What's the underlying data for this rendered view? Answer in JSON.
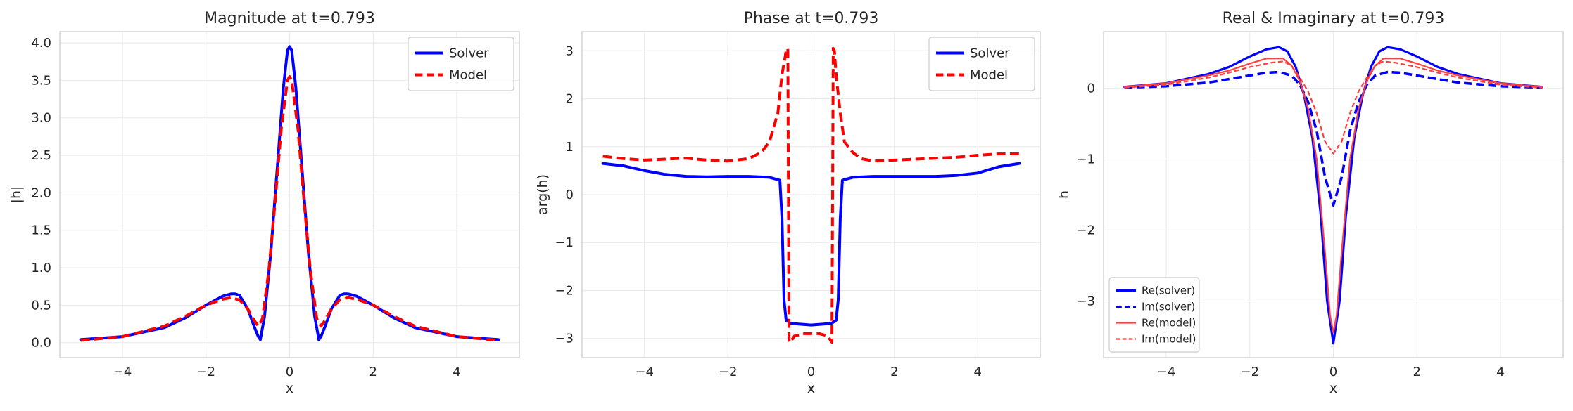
{
  "chart_data": [
    {
      "type": "line",
      "title": "Magnitude at t=0.793",
      "xlabel": "x",
      "ylabel": "|h|",
      "xlim": [
        -5.5,
        5.5
      ],
      "ylim": [
        -0.2,
        4.15
      ],
      "xticks": [
        -4,
        -2,
        0,
        2,
        4
      ],
      "yticks": [
        0.0,
        0.5,
        1.0,
        1.5,
        2.0,
        2.5,
        3.0,
        3.5,
        4.0
      ],
      "ytick_decimals": 1,
      "grid": true,
      "legend": "top-right",
      "series": [
        {
          "name": "Solver",
          "color": "#0000ff",
          "dash": "solid",
          "x": [
            -5,
            -4,
            -3,
            -2.5,
            -2,
            -1.6,
            -1.4,
            -1.3,
            -1.2,
            -1.0,
            -0.85,
            -0.75,
            -0.7,
            -0.6,
            -0.45,
            -0.3,
            -0.15,
            -0.05,
            0,
            0.05,
            0.15,
            0.3,
            0.45,
            0.6,
            0.7,
            0.75,
            0.85,
            1.0,
            1.2,
            1.3,
            1.4,
            1.6,
            2,
            2.5,
            3,
            4,
            5
          ],
          "y": [
            0.04,
            0.08,
            0.2,
            0.33,
            0.5,
            0.62,
            0.65,
            0.65,
            0.63,
            0.45,
            0.22,
            0.08,
            0.04,
            0.35,
            1.2,
            2.3,
            3.4,
            3.9,
            3.95,
            3.9,
            3.4,
            2.3,
            1.2,
            0.35,
            0.04,
            0.08,
            0.22,
            0.45,
            0.63,
            0.65,
            0.65,
            0.62,
            0.5,
            0.33,
            0.2,
            0.08,
            0.04
          ]
        },
        {
          "name": "Model",
          "color": "#ff0000",
          "dash": "dashed",
          "x": [
            -5,
            -4,
            -3,
            -2.5,
            -2,
            -1.6,
            -1.4,
            -1.2,
            -1.0,
            -0.85,
            -0.75,
            -0.65,
            -0.5,
            -0.35,
            -0.2,
            -0.05,
            0,
            0.05,
            0.2,
            0.35,
            0.5,
            0.65,
            0.75,
            0.85,
            1.0,
            1.2,
            1.4,
            1.6,
            2,
            2.5,
            3,
            4,
            5
          ],
          "y": [
            0.03,
            0.08,
            0.22,
            0.35,
            0.5,
            0.58,
            0.6,
            0.57,
            0.45,
            0.3,
            0.22,
            0.32,
            0.95,
            1.85,
            2.85,
            3.5,
            3.55,
            3.5,
            2.85,
            1.85,
            0.95,
            0.32,
            0.22,
            0.3,
            0.45,
            0.57,
            0.6,
            0.58,
            0.5,
            0.35,
            0.22,
            0.08,
            0.03
          ]
        }
      ]
    },
    {
      "type": "line",
      "title": "Phase at t=0.793",
      "xlabel": "x",
      "ylabel": "arg(h)",
      "xlim": [
        -5.5,
        5.5
      ],
      "ylim": [
        -3.4,
        3.4
      ],
      "xticks": [
        -4,
        -2,
        0,
        2,
        4
      ],
      "yticks": [
        -3,
        -2,
        -1,
        0,
        1,
        2,
        3
      ],
      "ytick_decimals": 0,
      "grid": true,
      "legend": "top-right",
      "series": [
        {
          "name": "Solver",
          "color": "#0000ff",
          "dash": "solid",
          "x": [
            -5,
            -4.5,
            -4,
            -3.5,
            -3,
            -2.5,
            -2,
            -1.5,
            -1,
            -0.75,
            -0.7,
            -0.65,
            -0.6,
            -0.5,
            -0.3,
            0,
            0.3,
            0.5,
            0.6,
            0.65,
            0.7,
            0.75,
            1,
            1.5,
            2,
            2.5,
            3,
            3.5,
            4,
            4.5,
            5
          ],
          "y": [
            0.65,
            0.6,
            0.5,
            0.42,
            0.38,
            0.37,
            0.38,
            0.38,
            0.36,
            0.3,
            -0.5,
            -2.2,
            -2.62,
            -2.68,
            -2.7,
            -2.72,
            -2.7,
            -2.68,
            -2.62,
            -2.2,
            -0.5,
            0.3,
            0.36,
            0.38,
            0.38,
            0.38,
            0.38,
            0.4,
            0.45,
            0.58,
            0.65
          ]
        },
        {
          "name": "Model",
          "color": "#ff0000",
          "dash": "dashed",
          "x": [
            -5,
            -4.5,
            -4,
            -3.5,
            -3,
            -2.5,
            -2,
            -1.5,
            -1.2,
            -1,
            -0.8,
            -0.7,
            -0.6,
            -0.56,
            -0.53,
            -0.5,
            -0.4,
            -0.2,
            0,
            0.2,
            0.4,
            0.5,
            0.53,
            0.56,
            0.6,
            0.7,
            0.8,
            1,
            1.2,
            1.5,
            2,
            2.5,
            3,
            3.5,
            4,
            4.5,
            5
          ],
          "y": [
            0.8,
            0.75,
            0.72,
            0.74,
            0.76,
            0.72,
            0.7,
            0.75,
            0.88,
            1.1,
            1.7,
            2.5,
            3.0,
            3.05,
            -3.05,
            -3.08,
            -2.95,
            -2.9,
            -2.9,
            -2.9,
            -2.95,
            -3.08,
            3.05,
            3.0,
            2.5,
            1.7,
            1.1,
            0.88,
            0.75,
            0.7,
            0.72,
            0.74,
            0.76,
            0.78,
            0.82,
            0.85,
            0.85
          ]
        }
      ]
    },
    {
      "type": "line",
      "title": "Real & Imaginary at t=0.793",
      "xlabel": "x",
      "ylabel": "h",
      "xlim": [
        -5.5,
        5.5
      ],
      "ylim": [
        -3.8,
        0.8
      ],
      "xticks": [
        -4,
        -2,
        0,
        2,
        4
      ],
      "yticks": [
        -3,
        -2,
        -1,
        0
      ],
      "ytick_decimals": 0,
      "grid": true,
      "legend": "bottom-left",
      "legend_small": true,
      "series": [
        {
          "name": "Re(solver)",
          "color": "#0000ff",
          "dash": "solid",
          "width": 3.2,
          "x": [
            -5,
            -4,
            -3,
            -2.5,
            -2,
            -1.6,
            -1.3,
            -1.1,
            -0.9,
            -0.7,
            -0.5,
            -0.3,
            -0.15,
            0,
            0.15,
            0.3,
            0.5,
            0.7,
            0.9,
            1.1,
            1.3,
            1.6,
            2,
            2.5,
            3,
            4,
            5
          ],
          "y": [
            0.02,
            0.07,
            0.2,
            0.3,
            0.45,
            0.55,
            0.58,
            0.52,
            0.3,
            -0.1,
            -0.7,
            -1.8,
            -3.0,
            -3.6,
            -3.0,
            -1.8,
            -0.7,
            -0.1,
            0.3,
            0.52,
            0.58,
            0.55,
            0.45,
            0.3,
            0.2,
            0.07,
            0.02
          ]
        },
        {
          "name": "Im(solver)",
          "color": "#0000ff",
          "dash": "dashed",
          "width": 3.6,
          "x": [
            -5,
            -4,
            -3,
            -2.5,
            -2,
            -1.6,
            -1.3,
            -1.0,
            -0.8,
            -0.6,
            -0.4,
            -0.2,
            0,
            0.2,
            0.4,
            0.6,
            0.8,
            1.0,
            1.3,
            1.6,
            2,
            2.5,
            3,
            4,
            5
          ],
          "y": [
            0.01,
            0.03,
            0.08,
            0.13,
            0.18,
            0.22,
            0.23,
            0.18,
            0.05,
            -0.2,
            -0.6,
            -1.25,
            -1.65,
            -1.25,
            -0.6,
            -0.2,
            0.05,
            0.18,
            0.23,
            0.22,
            0.18,
            0.13,
            0.08,
            0.03,
            0.01
          ]
        },
        {
          "name": "Re(model)",
          "color": "#ff4040",
          "dash": "solid",
          "width": 2.2,
          "x": [
            -5,
            -4,
            -3,
            -2.5,
            -2,
            -1.6,
            -1.2,
            -1.0,
            -0.8,
            -0.6,
            -0.4,
            -0.2,
            -0.08,
            0,
            0.08,
            0.2,
            0.4,
            0.6,
            0.8,
            1.0,
            1.2,
            1.6,
            2,
            2.5,
            3,
            4,
            5
          ],
          "y": [
            0.02,
            0.07,
            0.18,
            0.25,
            0.35,
            0.42,
            0.42,
            0.32,
            0.1,
            -0.3,
            -1.0,
            -2.3,
            -3.2,
            -3.45,
            -3.2,
            -2.3,
            -1.0,
            -0.3,
            0.1,
            0.32,
            0.42,
            0.42,
            0.35,
            0.25,
            0.18,
            0.07,
            0.02
          ]
        },
        {
          "name": "Im(model)",
          "color": "#ff4040",
          "dash": "dashed",
          "width": 2.2,
          "x": [
            -5,
            -4,
            -3,
            -2.5,
            -2,
            -1.5,
            -1.2,
            -1.0,
            -0.8,
            -0.6,
            -0.4,
            -0.2,
            0,
            0.2,
            0.4,
            0.6,
            0.8,
            1.0,
            1.2,
            1.5,
            2,
            2.5,
            3,
            4,
            5
          ],
          "y": [
            0.01,
            0.05,
            0.15,
            0.22,
            0.3,
            0.36,
            0.38,
            0.32,
            0.15,
            -0.05,
            -0.35,
            -0.75,
            -0.92,
            -0.75,
            -0.35,
            -0.05,
            0.15,
            0.32,
            0.38,
            0.36,
            0.3,
            0.22,
            0.15,
            0.05,
            0.01
          ]
        }
      ]
    }
  ]
}
